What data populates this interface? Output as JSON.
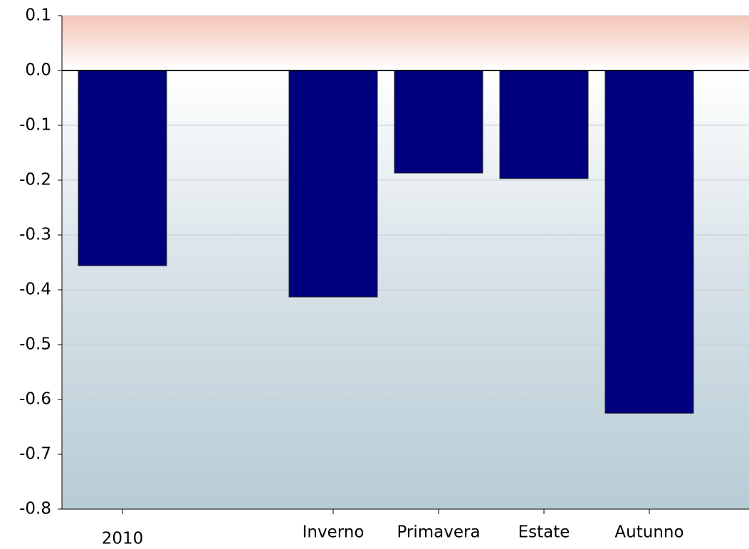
{
  "chart_data": {
    "type": "bar",
    "categories": [
      "2010",
      null,
      "Inverno",
      "Primavera",
      "Estate",
      "Autunno"
    ],
    "values": [
      -0.356,
      null,
      -0.413,
      -0.187,
      -0.197,
      -0.625
    ],
    "color": "#00007f",
    "ylim": [
      -0.8,
      0.1
    ],
    "yticks": [
      -0.8,
      -0.7,
      -0.6,
      -0.5,
      -0.4,
      -0.3,
      -0.2,
      -0.1,
      {
        "value": 0,
        "label": "0.0"
      },
      0.1
    ],
    "grid": true
  }
}
